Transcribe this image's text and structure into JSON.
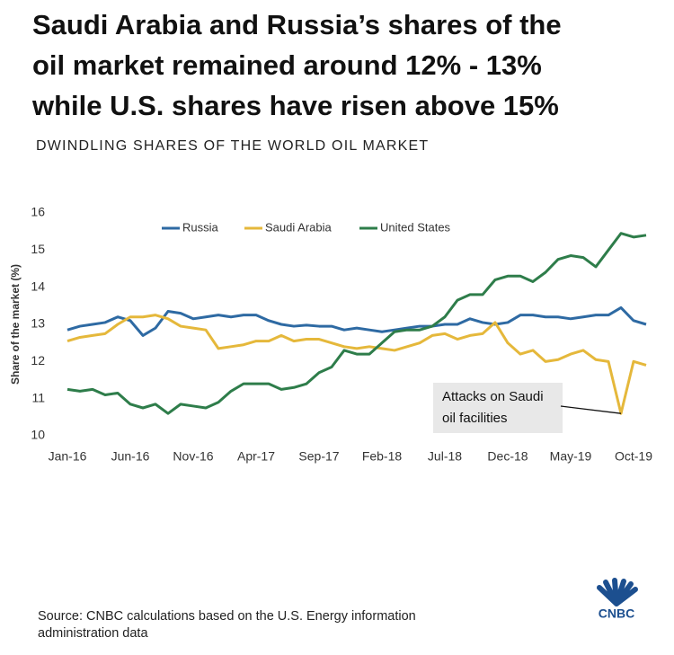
{
  "title_lines": [
    "Saudi Arabia and Russia’s shares of the",
    "oil market remained around 12% - 13%",
    "while U.S. shares have risen above 15%"
  ],
  "chart_data": {
    "type": "line",
    "subtitle": "DWINDLING SHARES OF THE WORLD OIL MARKET",
    "y_label": "Share of the market (%)",
    "categories": [
      "Jan-16",
      null,
      null,
      null,
      null,
      "Jun-16",
      null,
      null,
      null,
      null,
      "Nov-16",
      null,
      null,
      null,
      null,
      "Apr-17",
      null,
      null,
      null,
      null,
      "Sep-17",
      null,
      null,
      null,
      null,
      "Feb-18",
      null,
      null,
      null,
      null,
      "Jul-18",
      null,
      null,
      null,
      null,
      "Dec-18",
      null,
      null,
      null,
      null,
      "May-19",
      null,
      null,
      null,
      null,
      "Oct-19",
      null
    ],
    "series": [
      {
        "name": "Russia",
        "color": "#2e6aa3",
        "values": [
          12.85,
          12.95,
          13.0,
          13.05,
          13.2,
          13.1,
          12.7,
          12.9,
          13.35,
          13.3,
          13.15,
          13.2,
          13.25,
          13.2,
          13.25,
          13.25,
          13.1,
          13.0,
          12.95,
          12.98,
          12.95,
          12.95,
          12.85,
          12.9,
          12.85,
          12.8,
          12.85,
          12.9,
          12.95,
          12.95,
          13.0,
          13.0,
          13.15,
          13.05,
          13.0,
          13.05,
          13.25,
          13.25,
          13.2,
          13.2,
          13.15,
          13.2,
          13.25,
          13.25,
          13.45,
          13.1,
          13.0
        ]
      },
      {
        "name": "Saudi Arabia",
        "color": "#e5b83b",
        "values": [
          12.55,
          12.65,
          12.7,
          12.75,
          13.0,
          13.2,
          13.2,
          13.25,
          13.15,
          12.95,
          12.9,
          12.85,
          12.35,
          12.4,
          12.45,
          12.55,
          12.55,
          12.7,
          12.55,
          12.6,
          12.6,
          12.5,
          12.4,
          12.35,
          12.4,
          12.35,
          12.3,
          12.4,
          12.5,
          12.7,
          12.75,
          12.6,
          12.7,
          12.75,
          13.05,
          12.5,
          12.2,
          12.3,
          12.0,
          12.05,
          12.2,
          12.3,
          12.05,
          12.0,
          10.6,
          12.0,
          11.9
        ]
      },
      {
        "name": "United States",
        "color": "#2e7d4a",
        "values": [
          11.25,
          11.2,
          11.25,
          11.1,
          11.15,
          10.85,
          10.75,
          10.85,
          10.6,
          10.85,
          10.8,
          10.75,
          10.9,
          11.2,
          11.4,
          11.4,
          11.4,
          11.25,
          11.3,
          11.4,
          11.7,
          11.85,
          12.3,
          12.2,
          12.2,
          12.5,
          12.8,
          12.85,
          12.85,
          12.95,
          13.2,
          13.65,
          13.8,
          13.8,
          14.2,
          14.3,
          14.3,
          14.15,
          14.4,
          14.75,
          14.85,
          14.8,
          14.55,
          15.0,
          15.45,
          15.35,
          15.4
        ]
      }
    ],
    "ylim": [
      10,
      16
    ],
    "yticks": [
      10,
      11,
      12,
      13,
      14,
      15,
      16
    ],
    "annotation": {
      "lines": [
        "Attacks on Saudi",
        "oil facilities"
      ],
      "series": 1,
      "index": 44
    }
  },
  "source_lines": [
    "Source: CNBC calculations based on the U.S. Energy information",
    "administration data"
  ],
  "logo": "CNBC"
}
